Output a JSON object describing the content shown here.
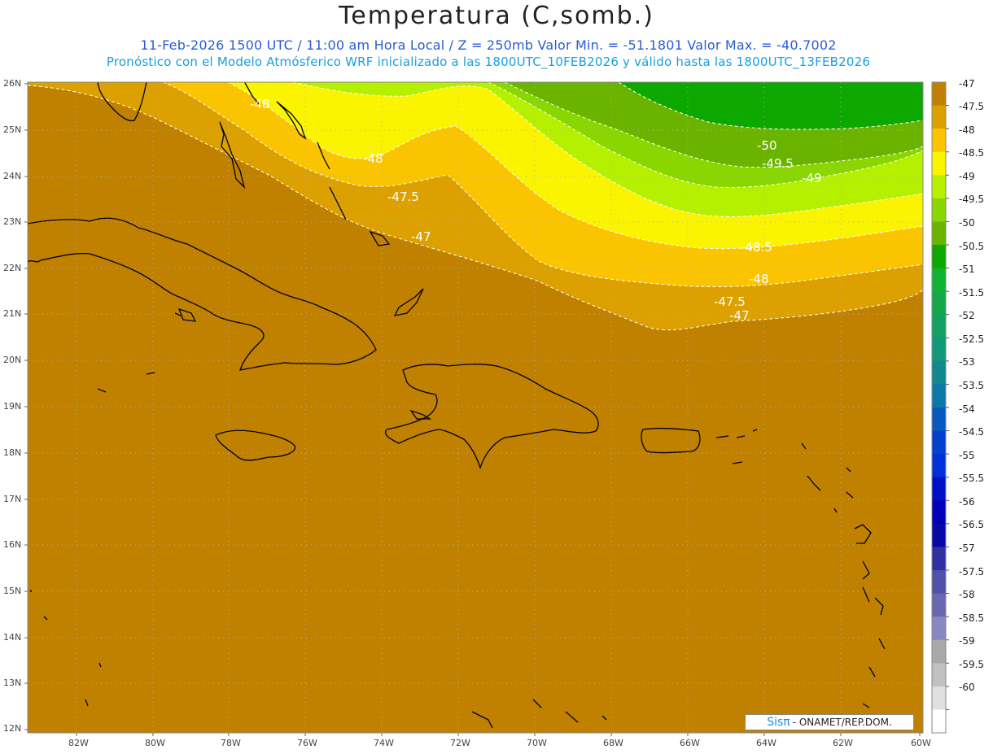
{
  "header": {
    "title": "Temperatura (C,somb.)",
    "subtitle_line1": "11-Feb-2026  1500 UTC / 11:00 am Hora Local / Z = 250mb  Valor Min. = -51.1801  Valor Max. = -40.7002",
    "subtitle_line2": "Pronóstico con el Modelo Atmósferico WRF inicializado a las 1800UTC_10FEB2026 y válido hasta las  1800UTC_13FEB2026"
  },
  "map": {
    "lat_labels": [
      "26N",
      "25N",
      "24N",
      "23N",
      "22N",
      "21N",
      "20N",
      "19N",
      "18N",
      "17N",
      "16N",
      "15N",
      "14N",
      "13N",
      "12N"
    ],
    "lon_labels": [
      "82W",
      "80W",
      "78W",
      "76W",
      "74W",
      "72W",
      "70W",
      "68W",
      "66W",
      "64W",
      "62W",
      "60W"
    ],
    "contour_labels": [
      "-48",
      "-48",
      "-47.5",
      "-47",
      "-50",
      "-49.5",
      "-49",
      "-48.5",
      "-48",
      "-47.5",
      "-47"
    ],
    "colors": {
      "c47": "#c08000",
      "c475": "#dca000",
      "c48": "#fbc400",
      "c485": "#fbf400",
      "c49": "#b4f000",
      "c495": "#8ad600",
      "c50": "#6ab400",
      "c505": "#0ca800"
    }
  },
  "colorbar": {
    "labels": [
      "-47",
      "-47.5",
      "-48",
      "-48.5",
      "-49",
      "-49.5",
      "-50",
      "-50.5",
      "-51",
      "-51.5",
      "-52",
      "-52.5",
      "-53",
      "-53.5",
      "-54",
      "-54.5",
      "-55",
      "-55.5",
      "-56",
      "-56.5",
      "-57",
      "-57.5",
      "-58",
      "-58.5",
      "-59",
      "-59.5",
      "-60"
    ],
    "colors": [
      "#c08000",
      "#dca000",
      "#fbc400",
      "#fbf400",
      "#b4f000",
      "#8ad600",
      "#6ab400",
      "#0ca800",
      "#10b430",
      "#14a848",
      "#14a060",
      "#10987a",
      "#108890",
      "#0c78a8",
      "#0858c0",
      "#0440d0",
      "#0030d8",
      "#0010c8",
      "#0000b8",
      "#0808a8",
      "#3030a0",
      "#5050a8",
      "#6868b0",
      "#8888c0",
      "#a8a8a8",
      "#c0c0c0",
      "#e0e0e0",
      "#ffffff"
    ]
  },
  "credit": {
    "logo": "Sisπ",
    "text": "- ONAMET/REP.DOM."
  }
}
